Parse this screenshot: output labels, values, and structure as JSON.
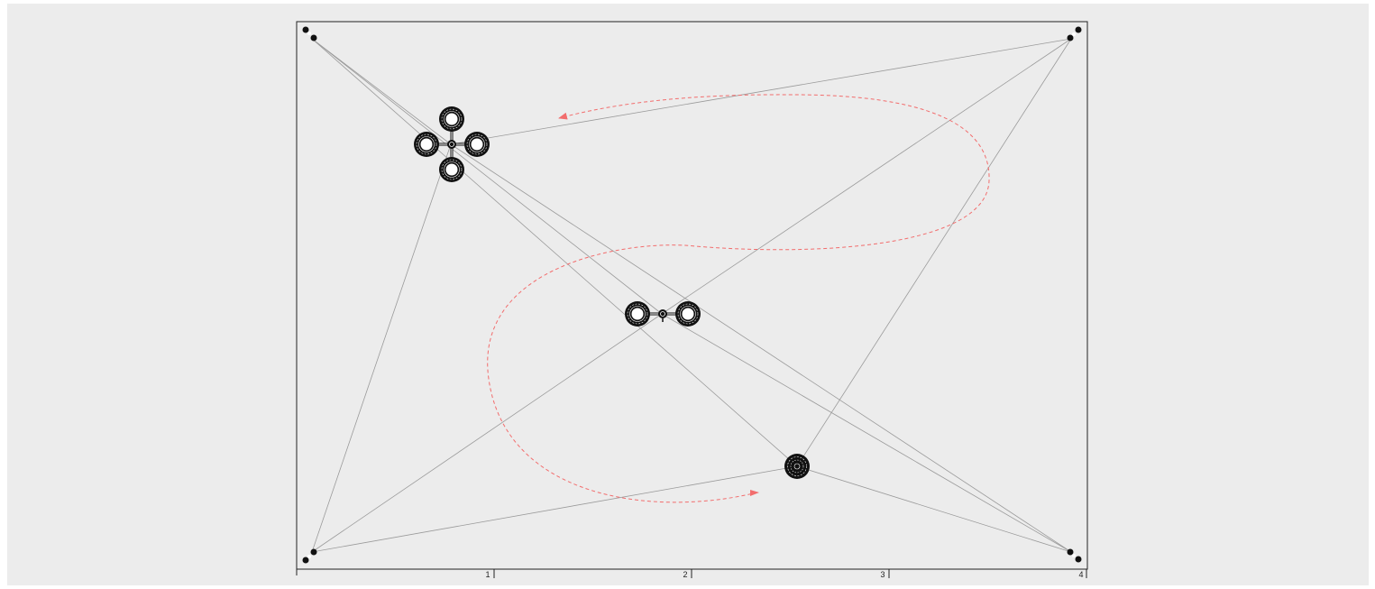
{
  "diagram": {
    "background_color": "#ececec",
    "frame_color": "#222222",
    "line_color": "#9a9a9a",
    "path_color": "#f26d6d",
    "icon_color": "#111111",
    "axis": {
      "ticks": [
        {
          "label": "1"
        },
        {
          "label": "2"
        },
        {
          "label": "3"
        },
        {
          "label": "4"
        }
      ]
    },
    "objects": [
      {
        "name": "quadcopter-icon"
      },
      {
        "name": "dual-rotor-icon"
      },
      {
        "name": "single-rotor-icon"
      }
    ],
    "anchors": [
      {
        "name": "anchor-top-left"
      },
      {
        "name": "anchor-top-right"
      },
      {
        "name": "anchor-bottom-left"
      },
      {
        "name": "anchor-bottom-right"
      }
    ]
  }
}
